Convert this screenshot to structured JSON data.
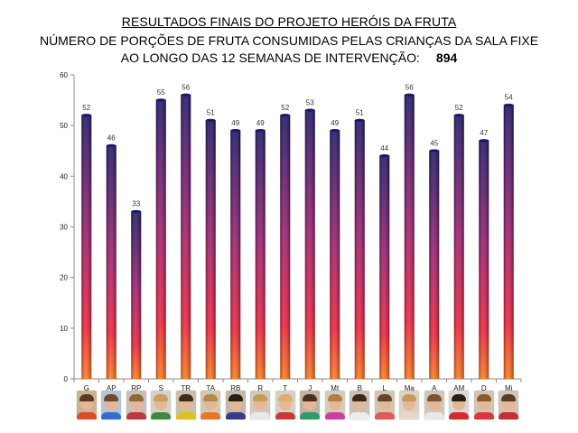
{
  "title": {
    "line1": "RESULTADOS FINAIS DO PROJETO HERÓIS DA FRUTA",
    "line2": "NÚMERO DE PORÇÕES DE FRUTA CONSUMIDAS PELAS CRIANÇAS DA SALA FIXE",
    "line3": "AO LONGO DAS 12 SEMANAS DE INTERVENÇÃO:",
    "total": "894"
  },
  "chart_data": {
    "type": "bar",
    "title": "RESULTADOS FINAIS DO PROJETO HERÓIS DA FRUTA",
    "categories": [
      "G",
      "AP",
      "RP",
      "S",
      "TR",
      "TA",
      "RB",
      "R",
      "T",
      "J",
      "Mt",
      "B",
      "L",
      "Ma",
      "A",
      "AM",
      "D",
      "Mi"
    ],
    "values": [
      52,
      46,
      33,
      55,
      56,
      51,
      49,
      49,
      52,
      53,
      49,
      51,
      44,
      56,
      45,
      52,
      47,
      54
    ],
    "ylim": [
      0,
      60
    ],
    "yticks": [
      0,
      10,
      20,
      30,
      40,
      50,
      60
    ],
    "grid": false,
    "legend": "none",
    "data_labels": true,
    "colors": {
      "bar_top": "#1e1466",
      "bar_mid": "#9a1c6e",
      "bar_low": "#f0203a",
      "bar_bottom": "#ff7a18",
      "axis": "#8c8c8c"
    }
  },
  "photos": [
    {
      "hair": "#5a3a22",
      "shirt": "#d94d2b",
      "bg": "#c9b48e"
    },
    {
      "hair": "#6b4a2e",
      "shirt": "#2e6fcf",
      "bg": "#b8c4d6"
    },
    {
      "hair": "#8a6a3c",
      "shirt": "#b83c3c",
      "bg": "#c7c0b8"
    },
    {
      "hair": "#c8a05a",
      "shirt": "#3f8a3f",
      "bg": "#d6d0c6"
    },
    {
      "hair": "#3e2a1c",
      "shirt": "#e0c020",
      "bg": "#c8bfa8"
    },
    {
      "hair": "#b38a4a",
      "shirt": "#e6762a",
      "bg": "#d2c8b6"
    },
    {
      "hair": "#2a1c14",
      "shirt": "#3a3a8a",
      "bg": "#c4b8a8"
    },
    {
      "hair": "#c89a58",
      "shirt": "#e8e8e8",
      "bg": "#d0c8c0"
    },
    {
      "hair": "#d8b070",
      "shirt": "#c83a3a",
      "bg": "#d8d0c4"
    },
    {
      "hair": "#4a3020",
      "shirt": "#2f9a6a",
      "bg": "#c0b4a0"
    },
    {
      "hair": "#b08040",
      "shirt": "#c840a0",
      "bg": "#d4ccc0"
    },
    {
      "hair": "#3a281a",
      "shirt": "#ececec",
      "bg": "#c8c0b4"
    },
    {
      "hair": "#6a4226",
      "shirt": "#e05a5a",
      "bg": "#d0c6b6"
    },
    {
      "hair": "#c49a5c",
      "shirt": "#e8d8c8",
      "bg": "#dcd2c4"
    },
    {
      "hair": "#7a5430",
      "shirt": "#e8e8e8",
      "bg": "#cfc6b8"
    },
    {
      "hair": "#2c1e14",
      "shirt": "#d42c2c",
      "bg": "#d8d8d8"
    },
    {
      "hair": "#8a5a30",
      "shirt": "#d83838",
      "bg": "#d2c4b6"
    },
    {
      "hair": "#5a3c24",
      "shirt": "#c83030",
      "bg": "#cfc4b6"
    }
  ]
}
